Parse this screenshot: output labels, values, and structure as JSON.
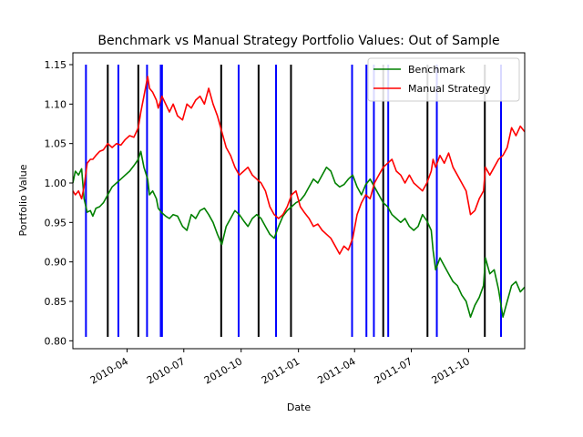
{
  "chart_data": {
    "type": "line",
    "title": "Benchmark vs Manual Strategy Portfolio Values: Out of Sample",
    "xlabel": "Date",
    "ylabel": "Portfolio Value",
    "xlim": [
      "2010-01-04",
      "2011-12-30"
    ],
    "ylim": [
      0.79,
      1.165
    ],
    "x_ticks": [
      {
        "date": "2010-04-01",
        "label": "2010-04"
      },
      {
        "date": "2010-07-01",
        "label": "2010-07"
      },
      {
        "date": "2010-10-01",
        "label": "2010-10"
      },
      {
        "date": "2011-01-01",
        "label": "2011-01"
      },
      {
        "date": "2011-04-01",
        "label": "2011-04"
      },
      {
        "date": "2011-07-01",
        "label": "2011-07"
      },
      {
        "date": "2011-10-01",
        "label": "2011-10"
      }
    ],
    "y_ticks": [
      {
        "value": 0.8,
        "label": "0.80"
      },
      {
        "value": 0.85,
        "label": "0.85"
      },
      {
        "value": 0.9,
        "label": "0.90"
      },
      {
        "value": 0.95,
        "label": "0.95"
      },
      {
        "value": 1.0,
        "label": "1.00"
      },
      {
        "value": 1.05,
        "label": "1.05"
      },
      {
        "value": 1.1,
        "label": "1.10"
      },
      {
        "value": 1.15,
        "label": "1.15"
      }
    ],
    "grid": false,
    "legend_position": "top-right",
    "series": [
      {
        "name": "Benchmark",
        "color": "#008000",
        "points": [
          [
            "2010-01-04",
            1.0
          ],
          [
            "2010-01-08",
            1.015
          ],
          [
            "2010-01-13",
            1.01
          ],
          [
            "2010-01-18",
            1.018
          ],
          [
            "2010-01-22",
            0.98
          ],
          [
            "2010-01-27",
            0.963
          ],
          [
            "2010-02-01",
            0.965
          ],
          [
            "2010-02-05",
            0.958
          ],
          [
            "2010-02-10",
            0.968
          ],
          [
            "2010-02-16",
            0.97
          ],
          [
            "2010-02-22",
            0.975
          ],
          [
            "2010-03-01",
            0.985
          ],
          [
            "2010-03-08",
            0.995
          ],
          [
            "2010-03-15",
            1.0
          ],
          [
            "2010-03-22",
            1.005
          ],
          [
            "2010-03-29",
            1.01
          ],
          [
            "2010-04-05",
            1.015
          ],
          [
            "2010-04-12",
            1.022
          ],
          [
            "2010-04-19",
            1.03
          ],
          [
            "2010-04-23",
            1.04
          ],
          [
            "2010-04-28",
            1.02
          ],
          [
            "2010-05-04",
            1.005
          ],
          [
            "2010-05-07",
            0.985
          ],
          [
            "2010-05-12",
            0.99
          ],
          [
            "2010-05-18",
            0.98
          ],
          [
            "2010-05-21",
            0.968
          ],
          [
            "2010-05-27",
            0.962
          ],
          [
            "2010-06-02",
            0.958
          ],
          [
            "2010-06-08",
            0.955
          ],
          [
            "2010-06-14",
            0.96
          ],
          [
            "2010-06-21",
            0.958
          ],
          [
            "2010-06-29",
            0.945
          ],
          [
            "2010-07-06",
            0.94
          ],
          [
            "2010-07-13",
            0.96
          ],
          [
            "2010-07-20",
            0.955
          ],
          [
            "2010-07-27",
            0.965
          ],
          [
            "2010-08-03",
            0.968
          ],
          [
            "2010-08-10",
            0.96
          ],
          [
            "2010-08-17",
            0.95
          ],
          [
            "2010-08-24",
            0.935
          ],
          [
            "2010-08-31",
            0.922
          ],
          [
            "2010-09-07",
            0.945
          ],
          [
            "2010-09-14",
            0.955
          ],
          [
            "2010-09-21",
            0.965
          ],
          [
            "2010-09-28",
            0.96
          ],
          [
            "2010-10-05",
            0.952
          ],
          [
            "2010-10-12",
            0.945
          ],
          [
            "2010-10-19",
            0.955
          ],
          [
            "2010-10-26",
            0.96
          ],
          [
            "2010-11-02",
            0.955
          ],
          [
            "2010-11-09",
            0.945
          ],
          [
            "2010-11-16",
            0.935
          ],
          [
            "2010-11-23",
            0.93
          ],
          [
            "2010-11-30",
            0.945
          ],
          [
            "2010-12-07",
            0.958
          ],
          [
            "2010-12-14",
            0.965
          ],
          [
            "2010-12-21",
            0.97
          ],
          [
            "2010-12-28",
            0.975
          ],
          [
            "2011-01-04",
            0.978
          ],
          [
            "2011-01-11",
            0.985
          ],
          [
            "2011-01-18",
            0.995
          ],
          [
            "2011-01-25",
            1.005
          ],
          [
            "2011-02-01",
            1.0
          ],
          [
            "2011-02-08",
            1.01
          ],
          [
            "2011-02-15",
            1.02
          ],
          [
            "2011-02-22",
            1.015
          ],
          [
            "2011-03-01",
            1.0
          ],
          [
            "2011-03-08",
            0.995
          ],
          [
            "2011-03-15",
            0.998
          ],
          [
            "2011-03-22",
            1.005
          ],
          [
            "2011-03-29",
            1.01
          ],
          [
            "2011-04-05",
            0.995
          ],
          [
            "2011-04-12",
            0.985
          ],
          [
            "2011-04-19",
            0.998
          ],
          [
            "2011-04-26",
            1.005
          ],
          [
            "2011-05-03",
            0.995
          ],
          [
            "2011-05-10",
            0.985
          ],
          [
            "2011-05-17",
            0.975
          ],
          [
            "2011-05-24",
            0.97
          ],
          [
            "2011-05-31",
            0.96
          ],
          [
            "2011-06-07",
            0.955
          ],
          [
            "2011-06-14",
            0.95
          ],
          [
            "2011-06-21",
            0.955
          ],
          [
            "2011-06-28",
            0.945
          ],
          [
            "2011-07-05",
            0.94
          ],
          [
            "2011-07-12",
            0.945
          ],
          [
            "2011-07-19",
            0.96
          ],
          [
            "2011-07-26",
            0.952
          ],
          [
            "2011-08-02",
            0.94
          ],
          [
            "2011-08-05",
            0.915
          ],
          [
            "2011-08-09",
            0.89
          ],
          [
            "2011-08-16",
            0.905
          ],
          [
            "2011-08-23",
            0.895
          ],
          [
            "2011-08-30",
            0.885
          ],
          [
            "2011-09-06",
            0.875
          ],
          [
            "2011-09-13",
            0.87
          ],
          [
            "2011-09-20",
            0.858
          ],
          [
            "2011-09-27",
            0.85
          ],
          [
            "2011-10-04",
            0.83
          ],
          [
            "2011-10-11",
            0.845
          ],
          [
            "2011-10-18",
            0.855
          ],
          [
            "2011-10-25",
            0.87
          ],
          [
            "2011-10-28",
            0.905
          ],
          [
            "2011-11-04",
            0.885
          ],
          [
            "2011-11-11",
            0.89
          ],
          [
            "2011-11-18",
            0.865
          ],
          [
            "2011-11-25",
            0.83
          ],
          [
            "2011-12-02",
            0.85
          ],
          [
            "2011-12-09",
            0.87
          ],
          [
            "2011-12-16",
            0.875
          ],
          [
            "2011-12-23",
            0.862
          ],
          [
            "2011-12-30",
            0.868
          ]
        ]
      },
      {
        "name": "Manual Strategy",
        "color": "#ff0000",
        "points": [
          [
            "2010-01-04",
            0.99
          ],
          [
            "2010-01-08",
            0.985
          ],
          [
            "2010-01-13",
            0.99
          ],
          [
            "2010-01-18",
            0.98
          ],
          [
            "2010-01-22",
            0.995
          ],
          [
            "2010-01-27",
            1.025
          ],
          [
            "2010-02-01",
            1.03
          ],
          [
            "2010-02-05",
            1.03
          ],
          [
            "2010-02-10",
            1.035
          ],
          [
            "2010-02-16",
            1.04
          ],
          [
            "2010-02-22",
            1.042
          ],
          [
            "2010-03-01",
            1.05
          ],
          [
            "2010-03-08",
            1.045
          ],
          [
            "2010-03-15",
            1.05
          ],
          [
            "2010-03-22",
            1.048
          ],
          [
            "2010-03-29",
            1.055
          ],
          [
            "2010-04-05",
            1.06
          ],
          [
            "2010-04-12",
            1.058
          ],
          [
            "2010-04-19",
            1.07
          ],
          [
            "2010-04-23",
            1.09
          ],
          [
            "2010-04-28",
            1.11
          ],
          [
            "2010-05-04",
            1.135
          ],
          [
            "2010-05-07",
            1.12
          ],
          [
            "2010-05-12",
            1.115
          ],
          [
            "2010-05-18",
            1.105
          ],
          [
            "2010-05-21",
            1.095
          ],
          [
            "2010-05-27",
            1.11
          ],
          [
            "2010-06-02",
            1.1
          ],
          [
            "2010-06-08",
            1.09
          ],
          [
            "2010-06-14",
            1.1
          ],
          [
            "2010-06-21",
            1.085
          ],
          [
            "2010-06-29",
            1.08
          ],
          [
            "2010-07-06",
            1.1
          ],
          [
            "2010-07-13",
            1.095
          ],
          [
            "2010-07-20",
            1.105
          ],
          [
            "2010-07-27",
            1.11
          ],
          [
            "2010-08-03",
            1.1
          ],
          [
            "2010-08-10",
            1.12
          ],
          [
            "2010-08-17",
            1.1
          ],
          [
            "2010-08-24",
            1.085
          ],
          [
            "2010-08-31",
            1.065
          ],
          [
            "2010-09-07",
            1.045
          ],
          [
            "2010-09-14",
            1.035
          ],
          [
            "2010-09-21",
            1.02
          ],
          [
            "2010-09-28",
            1.01
          ],
          [
            "2010-10-05",
            1.015
          ],
          [
            "2010-10-12",
            1.02
          ],
          [
            "2010-10-19",
            1.01
          ],
          [
            "2010-10-26",
            1.005
          ],
          [
            "2010-11-02",
            1.0
          ],
          [
            "2010-11-09",
            0.99
          ],
          [
            "2010-11-16",
            0.97
          ],
          [
            "2010-11-23",
            0.96
          ],
          [
            "2010-11-30",
            0.955
          ],
          [
            "2010-12-07",
            0.96
          ],
          [
            "2010-12-14",
            0.97
          ],
          [
            "2010-12-21",
            0.985
          ],
          [
            "2010-12-28",
            0.99
          ],
          [
            "2011-01-04",
            0.97
          ],
          [
            "2011-01-11",
            0.962
          ],
          [
            "2011-01-18",
            0.955
          ],
          [
            "2011-01-25",
            0.945
          ],
          [
            "2011-02-01",
            0.948
          ],
          [
            "2011-02-08",
            0.94
          ],
          [
            "2011-02-15",
            0.935
          ],
          [
            "2011-02-22",
            0.93
          ],
          [
            "2011-03-01",
            0.92
          ],
          [
            "2011-03-08",
            0.91
          ],
          [
            "2011-03-15",
            0.92
          ],
          [
            "2011-03-22",
            0.915
          ],
          [
            "2011-03-29",
            0.93
          ],
          [
            "2011-04-05",
            0.96
          ],
          [
            "2011-04-12",
            0.975
          ],
          [
            "2011-04-19",
            0.985
          ],
          [
            "2011-04-26",
            0.98
          ],
          [
            "2011-05-03",
            1.0
          ],
          [
            "2011-05-10",
            1.01
          ],
          [
            "2011-05-17",
            1.02
          ],
          [
            "2011-05-24",
            1.025
          ],
          [
            "2011-05-31",
            1.03
          ],
          [
            "2011-06-07",
            1.015
          ],
          [
            "2011-06-14",
            1.01
          ],
          [
            "2011-06-21",
            1.0
          ],
          [
            "2011-06-28",
            1.01
          ],
          [
            "2011-07-05",
            1.0
          ],
          [
            "2011-07-12",
            0.995
          ],
          [
            "2011-07-19",
            0.99
          ],
          [
            "2011-07-26",
            1.0
          ],
          [
            "2011-08-02",
            1.015
          ],
          [
            "2011-08-05",
            1.03
          ],
          [
            "2011-08-09",
            1.02
          ],
          [
            "2011-08-16",
            1.035
          ],
          [
            "2011-08-23",
            1.025
          ],
          [
            "2011-08-30",
            1.038
          ],
          [
            "2011-09-06",
            1.02
          ],
          [
            "2011-09-13",
            1.01
          ],
          [
            "2011-09-20",
            1.0
          ],
          [
            "2011-09-27",
            0.99
          ],
          [
            "2011-10-04",
            0.96
          ],
          [
            "2011-10-11",
            0.965
          ],
          [
            "2011-10-18",
            0.98
          ],
          [
            "2011-10-25",
            0.99
          ],
          [
            "2011-10-28",
            1.02
          ],
          [
            "2011-11-04",
            1.01
          ],
          [
            "2011-11-11",
            1.02
          ],
          [
            "2011-11-18",
            1.03
          ],
          [
            "2011-11-25",
            1.035
          ],
          [
            "2011-12-02",
            1.045
          ],
          [
            "2011-12-09",
            1.07
          ],
          [
            "2011-12-16",
            1.06
          ],
          [
            "2011-12-23",
            1.072
          ],
          [
            "2011-12-30",
            1.065
          ]
        ]
      }
    ],
    "vertical_markers": [
      {
        "date": "2010-01-25",
        "color": "#0000ff"
      },
      {
        "date": "2010-03-01",
        "color": "#000000"
      },
      {
        "date": "2010-03-18",
        "color": "#0000ff"
      },
      {
        "date": "2010-04-19",
        "color": "#000000"
      },
      {
        "date": "2010-05-03",
        "color": "#0000ff"
      },
      {
        "date": "2010-05-25",
        "color": "#0000ff"
      },
      {
        "date": "2010-05-27",
        "color": "#0000ff"
      },
      {
        "date": "2010-08-30",
        "color": "#000000"
      },
      {
        "date": "2010-09-27",
        "color": "#0000ff"
      },
      {
        "date": "2010-10-29",
        "color": "#000000"
      },
      {
        "date": "2010-11-26",
        "color": "#0000ff"
      },
      {
        "date": "2010-12-20",
        "color": "#000000"
      },
      {
        "date": "2011-03-28",
        "color": "#0000ff"
      },
      {
        "date": "2011-04-20",
        "color": "#0000ff"
      },
      {
        "date": "2011-05-02",
        "color": "#0000ff"
      },
      {
        "date": "2011-05-17",
        "color": "#000000"
      },
      {
        "date": "2011-05-25",
        "color": "#0000ff"
      },
      {
        "date": "2011-07-27",
        "color": "#000000"
      },
      {
        "date": "2011-08-11",
        "color": "#0000ff"
      },
      {
        "date": "2011-10-27",
        "color": "#000000"
      },
      {
        "date": "2011-11-22",
        "color": "#0000ff"
      }
    ]
  }
}
